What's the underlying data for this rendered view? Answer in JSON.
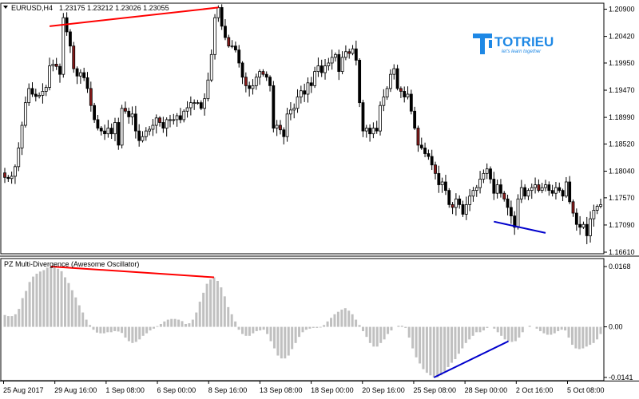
{
  "price_panel": {
    "symbol_title": "EURUSD,H4",
    "ohlc": "1.23175 1.23212 1.23026 1.23055",
    "price_ticks": [
      "1.20900",
      "1.20420",
      "1.19950",
      "1.19470",
      "1.18990",
      "1.18520",
      "1.18040",
      "1.17570",
      "1.17090",
      "1.16610"
    ],
    "price_range": [
      1.1661,
      1.2095
    ]
  },
  "oscillator_panel": {
    "title": "PZ Multi-Divergence (Awesome Oscillator)",
    "ticks": [
      "0.0168",
      "0.00",
      "-0.0141"
    ],
    "range": [
      -0.0141,
      0.0168
    ]
  },
  "time_axis": {
    "labels": [
      "25 Aug 2017",
      "29 Aug 16:00",
      "1 Sep 08:00",
      "6 Sep 00:00",
      "8 Sep 16:00",
      "13 Sep 08:00",
      "18 Sep 00:00",
      "20 Sep 16:00",
      "25 Sep 08:00",
      "28 Sep 00:00",
      "2 Oct 16:00",
      "5 Oct 08:00"
    ]
  },
  "logo": {
    "text": "TOTRIEU",
    "tagline": "let's learn together"
  },
  "colors": {
    "bull": "#ffffff",
    "bear": "#000000",
    "bear_alt": "#8b1a1a",
    "bearish_divergence": "#ff0000",
    "bullish_divergence": "#0000cc",
    "histogram": "#c0c0c0",
    "brand": "#1e88e5"
  },
  "chart_data": [
    {
      "type": "candlestick",
      "title": "EURUSD,H4",
      "ylim": [
        1.1661,
        1.2095
      ],
      "series": [
        {
          "name": "EURUSD,H4",
          "close": [
            1.1793,
            1.1791,
            1.1795,
            1.1812,
            1.1845,
            1.1885,
            1.1925,
            1.195,
            1.194,
            1.1936,
            1.1938,
            1.1945,
            1.1952,
            1.199,
            1.1993,
            1.1989,
            1.1975,
            1.2075,
            1.205,
            1.2025,
            1.1985,
            1.1972,
            1.1978,
            1.1969,
            1.195,
            1.192,
            1.1895,
            1.188,
            1.1875,
            1.187,
            1.188,
            1.187,
            1.189,
            1.185,
            1.1915,
            1.191,
            1.19,
            1.1905,
            1.1875,
            1.1858,
            1.1865,
            1.1875,
            1.1878,
            1.1885,
            1.1898,
            1.189,
            1.188,
            1.1895,
            1.1895,
            1.1895,
            1.1902,
            1.1895,
            1.191,
            1.1916,
            1.1925,
            1.1925,
            1.1925,
            1.1915,
            1.1932,
            1.1965,
            1.201,
            1.2075,
            1.2093,
            1.206,
            1.204,
            1.2025,
            1.2025,
            1.2018,
            1.1995,
            1.197,
            1.1955,
            1.195,
            1.1955,
            1.197,
            1.198,
            1.1975,
            1.197,
            1.1955,
            1.188,
            1.1885,
            1.1877,
            1.1865,
            1.1905,
            1.1912,
            1.1915,
            1.1935,
            1.1946,
            1.194,
            1.196,
            1.1955,
            1.198,
            1.199,
            1.1978,
            1.199,
            1.1995,
            1.2005,
            1.201,
            1.198,
            1.2005,
            1.2015,
            1.2012,
            1.202,
            1.2,
            1.1925,
            1.1875,
            1.188,
            1.187,
            1.188,
            1.1875,
            1.192,
            1.1935,
            1.195,
            1.1975,
            1.1985,
            1.195,
            1.1945,
            1.1935,
            1.194,
            1.191,
            1.188,
            1.185,
            1.1845,
            1.1835,
            1.183,
            1.1815,
            1.18,
            1.178,
            1.1785,
            1.177,
            1.1745,
            1.174,
            1.1755,
            1.1745,
            1.1728,
            1.1745,
            1.176,
            1.177,
            1.1775,
            1.179,
            1.18,
            1.1808,
            1.179,
            1.1765,
            1.178,
            1.1765,
            1.1755,
            1.174,
            1.1725,
            1.1705,
            1.1755,
            1.1775,
            1.176,
            1.177,
            1.1775,
            1.178,
            1.177,
            1.1775,
            1.178,
            1.177,
            1.1765,
            1.1775,
            1.177,
            1.176,
            1.1785,
            1.175,
            1.173,
            1.171,
            1.1705,
            1.171,
            1.169,
            1.172,
            1.1735,
            1.1742,
            1.1745
          ]
        }
      ]
    },
    {
      "type": "bar",
      "title": "PZ Multi-Divergence (Awesome Oscillator)",
      "ylim": [
        -0.0141,
        0.0168
      ],
      "series": [
        {
          "name": "PZ Multi-Divergence (Awesome Oscillator)",
          "values": [
            0.0033,
            0.003,
            0.003,
            0.0035,
            0.005,
            0.008,
            0.01,
            0.0125,
            0.014,
            0.0148,
            0.0154,
            0.0158,
            0.0165,
            0.0168,
            0.0168,
            0.0162,
            0.0155,
            0.0138,
            0.0122,
            0.0102,
            0.0082,
            0.006,
            0.004,
            0.002,
            0.0005,
            -0.0008,
            -0.0016,
            -0.0018,
            -0.0018,
            -0.0015,
            -0.0015,
            -0.0012,
            -0.0013,
            -0.0017,
            -0.003,
            -0.004,
            -0.0045,
            -0.0042,
            -0.0035,
            -0.0025,
            -0.0018,
            -0.001,
            -0.0005,
            0.0002,
            0.0008,
            0.0015,
            0.002,
            0.0022,
            0.0022,
            0.002,
            0.0016,
            0.0008,
            0.001,
            0.002,
            0.004,
            0.007,
            0.0095,
            0.012,
            0.0132,
            0.0138,
            0.0128,
            0.011,
            0.0085,
            0.0055,
            0.0035,
            0.0015,
            -0.0008,
            -0.002,
            -0.0025,
            -0.0025,
            -0.0018,
            -0.0012,
            -0.001,
            -0.0008,
            -0.002,
            -0.004,
            -0.006,
            -0.008,
            -0.0088,
            -0.0088,
            -0.008,
            -0.0062,
            -0.0045,
            -0.0028,
            -0.0015,
            -0.0008,
            -0.0005,
            -0.0003,
            -0.0003,
            -0.0002,
            0.0005,
            0.0015,
            0.0025,
            0.0035,
            0.0042,
            0.0048,
            0.0052,
            0.0045,
            0.0035,
            0.002,
            0.0005,
            -0.0012,
            -0.0028,
            -0.0045,
            -0.0055,
            -0.0055,
            -0.0045,
            -0.0035,
            -0.002,
            -0.001,
            0.0,
            0.0003,
            0.0003,
            -0.0003,
            -0.003,
            -0.006,
            -0.0085,
            -0.0102,
            -0.0118,
            -0.0128,
            -0.0135,
            -0.0141,
            -0.0141,
            -0.0135,
            -0.0125,
            -0.0112,
            -0.01,
            -0.009,
            -0.0075,
            -0.006,
            -0.0045,
            -0.0035,
            -0.0025,
            -0.0015,
            -0.0015,
            -0.001,
            -0.0003,
            0.0,
            -0.0005,
            -0.0015,
            -0.0025,
            -0.0035,
            -0.004,
            -0.0042,
            -0.004,
            -0.003,
            -0.0015,
            0.0,
            0.0003,
            0.0,
            -0.0005,
            -0.0012,
            -0.0018,
            -0.0022,
            -0.0022,
            -0.0018,
            -0.0012,
            -0.0008,
            -0.001,
            -0.003,
            -0.005,
            -0.006,
            -0.0062,
            -0.006,
            -0.0055,
            -0.005,
            -0.0045,
            -0.0035,
            -0.002
          ]
        }
      ]
    }
  ]
}
